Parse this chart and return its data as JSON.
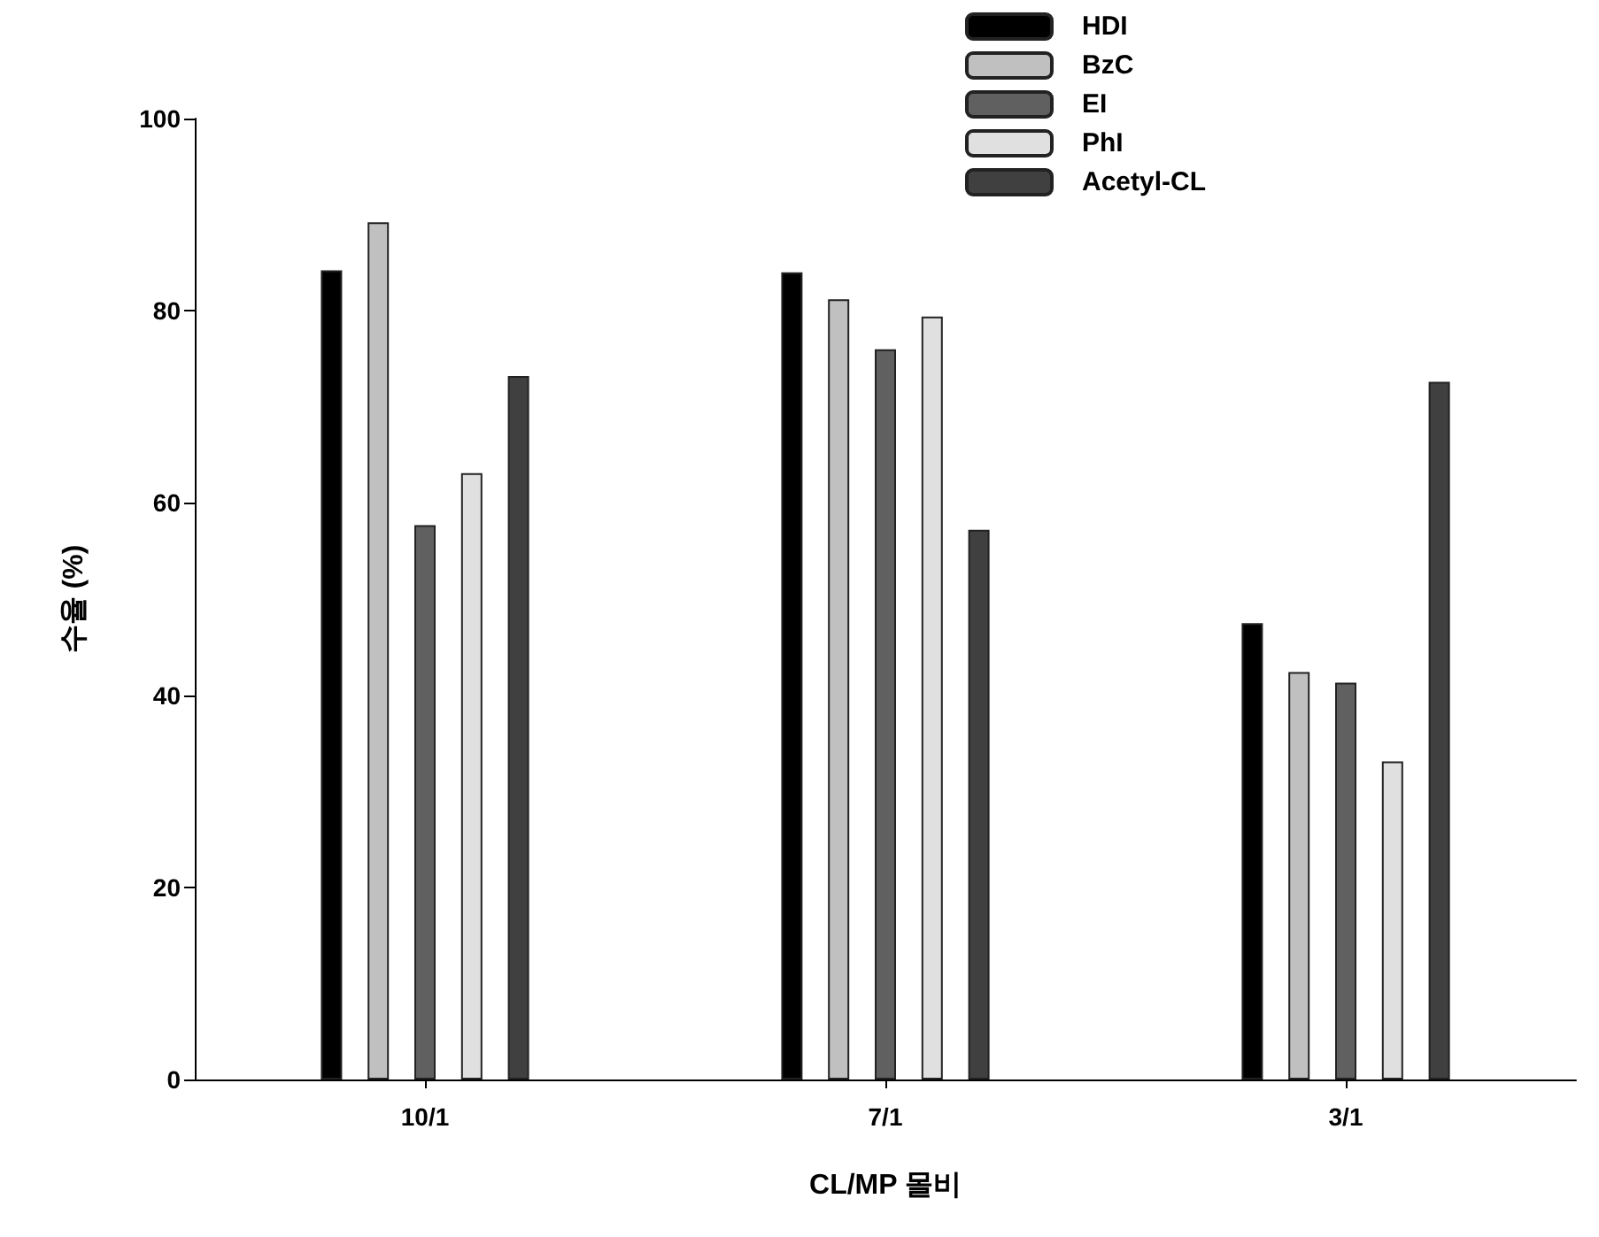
{
  "chart_data": {
    "type": "bar",
    "xlabel": "CL/MP 몰비",
    "ylabel": "수율 (%)",
    "categories": [
      "10/1",
      "7/1",
      "3/1"
    ],
    "series": [
      {
        "name": "HDI",
        "color": "#000000",
        "values": [
          84.2,
          84.0,
          47.5
        ]
      },
      {
        "name": "BzC",
        "color": "#c0c0c0",
        "values": [
          89.2,
          81.2,
          42.4
        ]
      },
      {
        "name": "EI",
        "color": "#606060",
        "values": [
          57.7,
          76.0,
          41.3
        ]
      },
      {
        "name": "PhI",
        "color": "#e0e0e0",
        "values": [
          63.1,
          79.4,
          33.1
        ]
      },
      {
        "name": "Acetyl-CL",
        "color": "#404040",
        "values": [
          73.2,
          57.2,
          72.6
        ]
      }
    ],
    "ylim": [
      0,
      100
    ],
    "yticks": [
      0,
      20,
      40,
      60,
      80,
      100
    ],
    "grid": false,
    "legend": "top right"
  }
}
